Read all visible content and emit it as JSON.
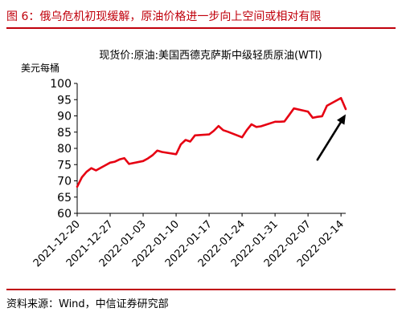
{
  "figure_title": "图 6：俄乌危机初现缓解，原油价格进一步向上空间或相对有限",
  "source": "资料来源：Wind，中信证券研究部",
  "colors": {
    "accent": "#c0000b",
    "line": "#e60012",
    "arrow": "#000000"
  },
  "chart_data": {
    "type": "line",
    "title": "现货价:原油:美国西德克萨斯中级轻质原油(WTI)",
    "xlabel": "",
    "ylabel": "美元每桶",
    "ylim": [
      60,
      100
    ],
    "yticks": [
      60,
      65,
      70,
      75,
      80,
      85,
      90,
      95,
      100
    ],
    "xtick_labels": [
      "2021-12-20",
      "2021-12-27",
      "2022-01-03",
      "2022-01-10",
      "2022-01-17",
      "2022-01-24",
      "2022-01-31",
      "2022-02-07",
      "2022-02-14"
    ],
    "grid": false,
    "legend": "none",
    "series": [
      {
        "x": [
          "2021-12-20",
          "2021-12-21",
          "2021-12-22",
          "2021-12-23",
          "2021-12-24",
          "2021-12-27",
          "2021-12-28",
          "2021-12-29",
          "2021-12-30",
          "2021-12-31",
          "2022-01-03",
          "2022-01-04",
          "2022-01-05",
          "2022-01-06",
          "2022-01-07",
          "2022-01-10",
          "2022-01-11",
          "2022-01-12",
          "2022-01-13",
          "2022-01-14",
          "2022-01-17",
          "2022-01-18",
          "2022-01-19",
          "2022-01-20",
          "2022-01-21",
          "2022-01-24",
          "2022-01-25",
          "2022-01-26",
          "2022-01-27",
          "2022-01-28",
          "2022-01-31",
          "2022-02-01",
          "2022-02-02",
          "2022-02-03",
          "2022-02-04",
          "2022-02-07",
          "2022-02-08",
          "2022-02-09",
          "2022-02-10",
          "2022-02-11",
          "2022-02-14",
          "2022-02-15"
        ],
        "values": [
          68.2,
          71.1,
          72.8,
          73.9,
          73.2,
          75.6,
          75.9,
          76.6,
          77.0,
          75.2,
          76.1,
          76.9,
          77.9,
          79.3,
          78.9,
          78.2,
          81.2,
          82.6,
          82.1,
          84.0,
          84.3,
          85.4,
          86.9,
          85.6,
          85.1,
          83.4,
          85.6,
          87.4,
          86.6,
          86.8,
          88.2,
          88.2,
          88.3,
          90.3,
          92.3,
          91.3,
          89.4,
          89.7,
          89.9,
          93.1,
          95.5,
          92.1
        ]
      }
    ],
    "annotations": [
      {
        "type": "arrow",
        "from": [
          "2022-02-09",
          76.5
        ],
        "to": [
          "2022-02-15",
          90.5
        ]
      }
    ]
  }
}
